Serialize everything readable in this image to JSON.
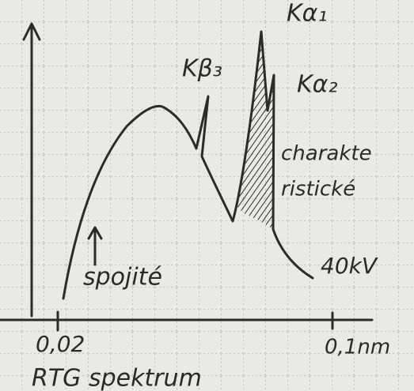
{
  "labels": {
    "k_beta_3": "Kβ₃",
    "k_alpha_1": "Kα₁",
    "k_alpha_2": "Kα₂",
    "characteristic": [
      "charakte",
      "ristické"
    ],
    "continuous": "spojité",
    "voltage": "40kV"
  },
  "axis": {
    "x_start": "0,02",
    "x_end": "0,1nm"
  },
  "caption": "RTG spektrum"
}
